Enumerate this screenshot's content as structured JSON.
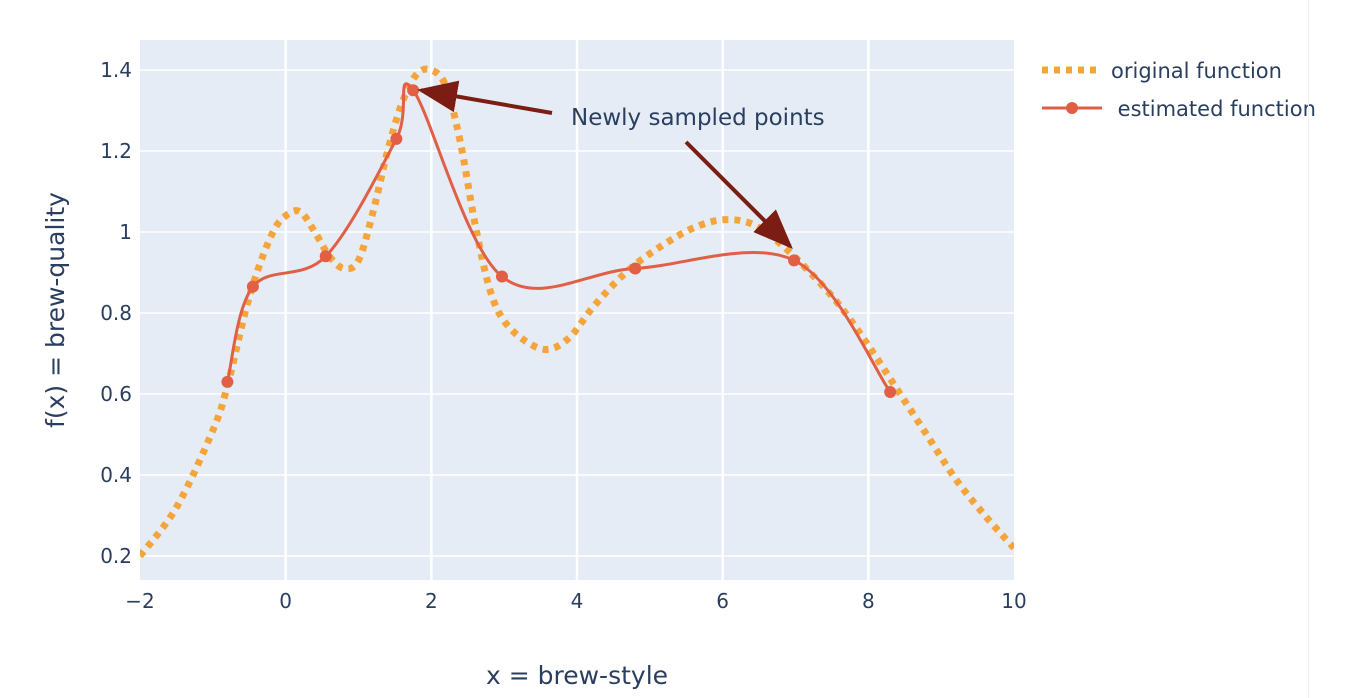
{
  "chart_data": {
    "type": "line",
    "xlabel": "x = brew-style",
    "ylabel": "f(x) = brew-quality",
    "xlim": [
      -2,
      10
    ],
    "ylim": [
      0.18,
      1.47
    ],
    "xticks": [
      -2,
      0,
      2,
      4,
      6,
      8,
      10
    ],
    "xtick_labels": [
      "−2",
      "0",
      "2",
      "4",
      "6",
      "8",
      "10"
    ],
    "yticks": [
      0.2,
      0.4,
      0.6,
      0.8,
      1.0,
      1.2,
      1.4
    ],
    "ytick_labels": [
      "0.2",
      "0.4",
      "0.6",
      "0.8",
      "1",
      "1.2",
      "1.4"
    ],
    "grid": true,
    "background_color": "#e5ecf6",
    "legend_position": "top-right",
    "series": [
      {
        "name": "original function",
        "style": "dotted",
        "color": "#f4a43a",
        "x": [
          -2.0,
          -1.5,
          -1.0,
          -0.8,
          -0.5,
          -0.2,
          0.0,
          0.2,
          0.4,
          0.6,
          0.8,
          1.0,
          1.2,
          1.4,
          1.6,
          1.8,
          2.0,
          2.2,
          2.4,
          2.6,
          2.8,
          3.0,
          3.3,
          3.6,
          3.9,
          4.2,
          4.5,
          4.8,
          5.2,
          5.6,
          6.0,
          6.4,
          6.8,
          7.2,
          7.6,
          8.0,
          8.4,
          8.8,
          9.2,
          9.6,
          10.0
        ],
        "y": [
          0.2,
          0.32,
          0.51,
          0.62,
          0.84,
          0.99,
          1.04,
          1.05,
          1.0,
          0.94,
          0.91,
          0.93,
          1.05,
          1.2,
          1.32,
          1.39,
          1.4,
          1.36,
          1.22,
          1.02,
          0.86,
          0.78,
          0.73,
          0.71,
          0.74,
          0.81,
          0.87,
          0.92,
          0.97,
          1.01,
          1.03,
          1.02,
          0.97,
          0.9,
          0.82,
          0.72,
          0.61,
          0.5,
          0.39,
          0.3,
          0.22
        ]
      },
      {
        "name": " estimated function",
        "style": "solid",
        "color": "#e05f45",
        "x": [
          -0.8,
          -0.45,
          0.55,
          1.52,
          1.75,
          2.97,
          4.8,
          6.98,
          8.3
        ],
        "y": [
          0.63,
          0.865,
          0.94,
          1.23,
          1.35,
          0.89,
          0.91,
          0.93,
          0.605
        ]
      }
    ],
    "annotations": [
      {
        "text": "Newly sampled points",
        "arrow_color": "#7b1d12",
        "targets": [
          {
            "x": 1.75,
            "y": 1.35
          },
          {
            "x": 6.98,
            "y": 0.955
          }
        ]
      }
    ]
  }
}
